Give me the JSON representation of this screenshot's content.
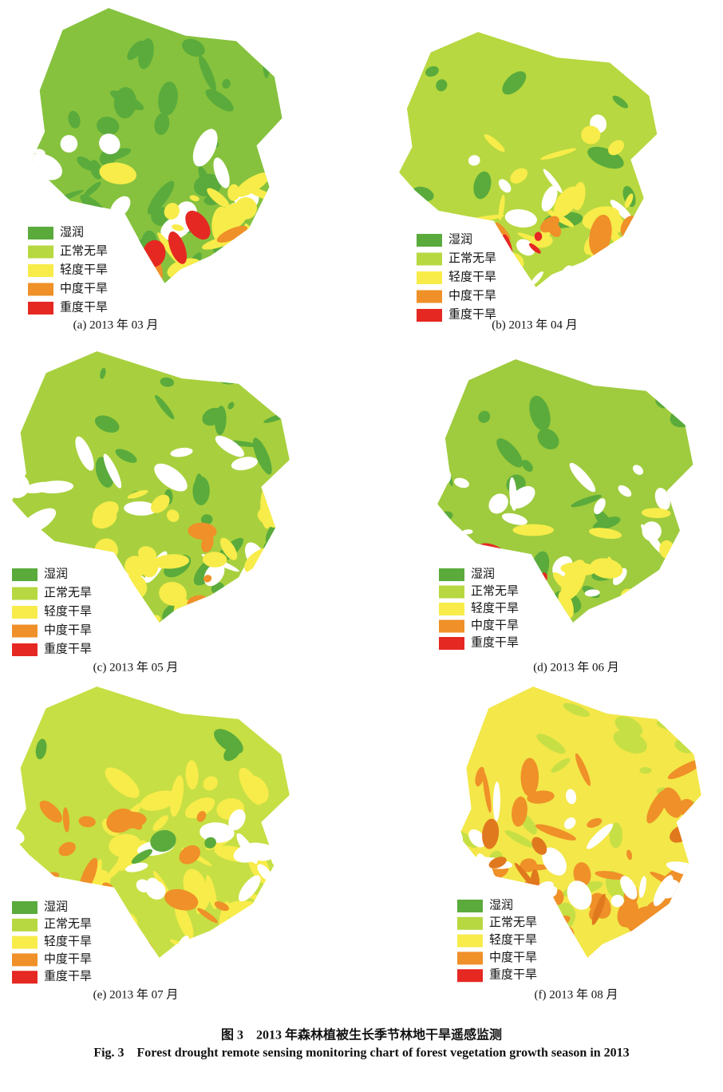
{
  "panels": [
    {
      "caption": "(a) 2013 年 03 月",
      "legend": [
        {
          "label": "湿润",
          "color": "#5aab3c"
        },
        {
          "label": "正常无旱",
          "color": "#b7d840"
        },
        {
          "label": "轻度干旱",
          "color": "#f7ec4a"
        },
        {
          "label": "中度干旱",
          "color": "#ef9028"
        },
        {
          "label": "重度干旱",
          "color": "#e52822"
        }
      ]
    },
    {
      "caption": "(b) 2013 年 04 月",
      "legend": [
        {
          "label": "湿润",
          "color": "#5aab3c"
        },
        {
          "label": "正常无旱",
          "color": "#b7d840"
        },
        {
          "label": "轻度干旱",
          "color": "#f7ec4a"
        },
        {
          "label": "中度干旱",
          "color": "#ef9028"
        },
        {
          "label": "重度干旱",
          "color": "#e52822"
        }
      ]
    },
    {
      "caption": "(c) 2013 年 05 月",
      "legend": [
        {
          "label": "湿润",
          "color": "#5aab3c"
        },
        {
          "label": "正常无旱",
          "color": "#b7d840"
        },
        {
          "label": "轻度干旱",
          "color": "#f7ec4a"
        },
        {
          "label": "中度干旱",
          "color": "#ef9028"
        },
        {
          "label": "重度干旱",
          "color": "#e52822"
        }
      ]
    },
    {
      "caption": "(d) 2013 年 06 月",
      "legend": [
        {
          "label": "湿润",
          "color": "#5aab3c"
        },
        {
          "label": "正常无旱",
          "color": "#b7d840"
        },
        {
          "label": "轻度干旱",
          "color": "#f7ec4a"
        },
        {
          "label": "中度干旱",
          "color": "#ef9028"
        },
        {
          "label": "重度干旱",
          "color": "#e52822"
        }
      ]
    },
    {
      "caption": "(e) 2013 年 07 月",
      "legend": [
        {
          "label": "湿润",
          "color": "#5aab3c"
        },
        {
          "label": "正常无旱",
          "color": "#b7d840"
        },
        {
          "label": "轻度干旱",
          "color": "#f7ec4a"
        },
        {
          "label": "中度干旱",
          "color": "#ef9028"
        },
        {
          "label": "重度干旱",
          "color": "#e52822"
        }
      ]
    },
    {
      "caption": "(f) 2013 年 08 月",
      "legend": [
        {
          "label": "湿润",
          "color": "#5aab3c"
        },
        {
          "label": "正常无旱",
          "color": "#b7d840"
        },
        {
          "label": "轻度干旱",
          "color": "#f7ec4a"
        },
        {
          "label": "中度干旱",
          "color": "#ef9028"
        },
        {
          "label": "重度干旱",
          "color": "#e52822"
        }
      ]
    }
  ],
  "figure_caption": {
    "zh": "图 3　2013 年森林植被生长季节林地干旱遥感监测",
    "en": "Fig. 3　Forest drought remote sensing monitoring chart of forest vegetation growth season in 2013"
  }
}
